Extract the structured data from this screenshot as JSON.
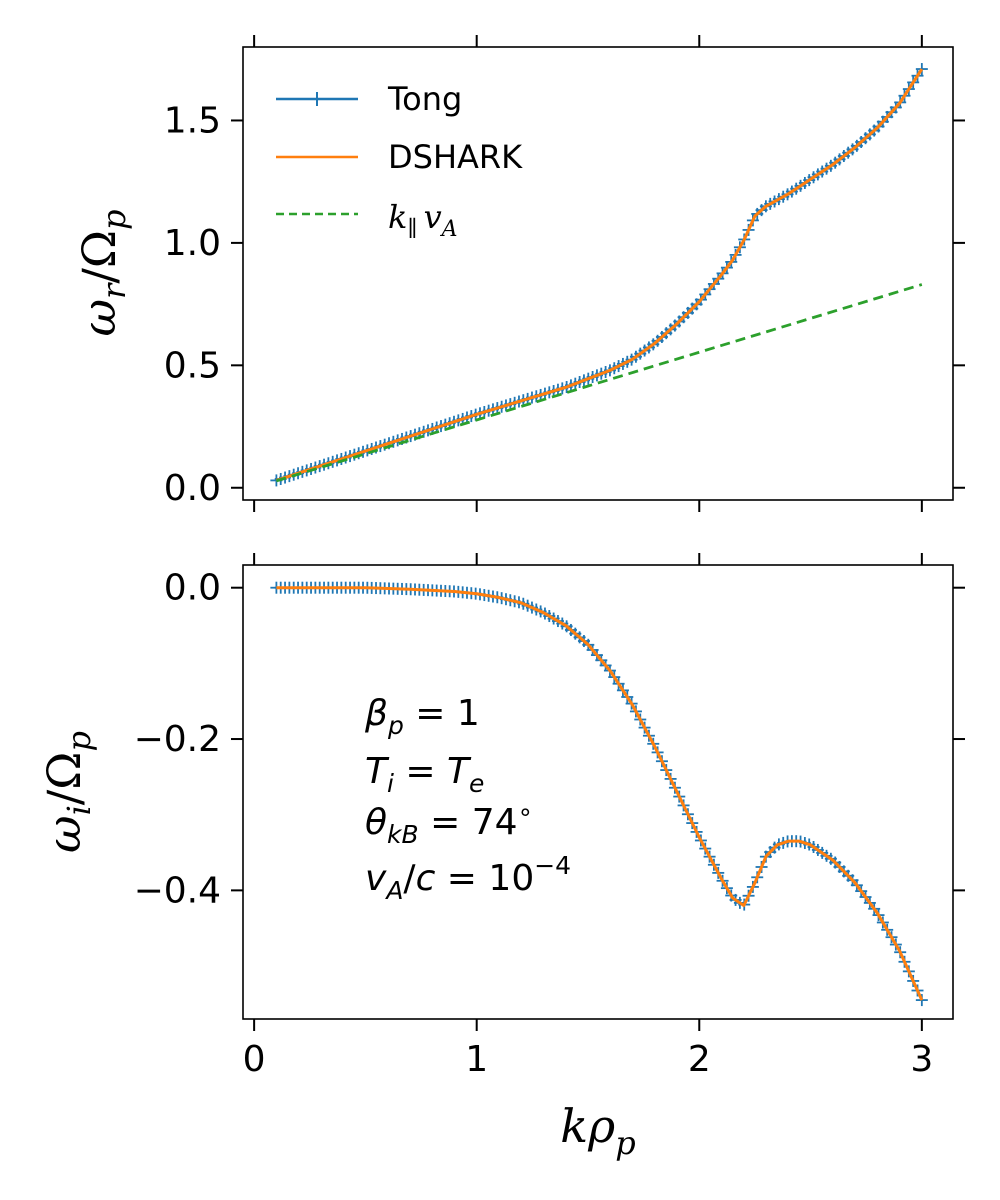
{
  "colors": {
    "tong": "#1f77b4",
    "dshark": "#ff7f0e",
    "alfven": "#2ca02c"
  },
  "xlabel": "kρp",
  "legend": {
    "placement": "upper-left",
    "entries": [
      "Tong",
      "DSHARK",
      "k∥vA"
    ]
  },
  "annotation": [
    "βp = 1",
    "Ti = Te",
    "θkB = 74°",
    "vA/c = 10⁻⁴"
  ],
  "chart_data": [
    {
      "type": "line",
      "panel": "top",
      "ylabel": "ωr/Ωp",
      "xlim": [
        -0.05,
        3.14
      ],
      "ylim": [
        -0.05,
        1.8
      ],
      "xticks": [
        0,
        1,
        2,
        3
      ],
      "yticks": [
        0.0,
        0.5,
        1.0,
        1.5
      ],
      "ytick_labels": [
        "0.0",
        "0.5",
        "1.0",
        "1.5"
      ],
      "grid": false,
      "series": [
        {
          "name": "Tong",
          "style": "plus-markers",
          "x": [
            0.1,
            0.2,
            0.4,
            0.6,
            0.8,
            1.0,
            1.2,
            1.4,
            1.5,
            1.6,
            1.7,
            1.8,
            1.9,
            2.0,
            2.1,
            2.15,
            2.2,
            2.25,
            2.3,
            2.4,
            2.5,
            2.6,
            2.7,
            2.8,
            2.9,
            3.0
          ],
          "y": [
            0.03,
            0.06,
            0.12,
            0.18,
            0.24,
            0.3,
            0.355,
            0.41,
            0.445,
            0.48,
            0.525,
            0.59,
            0.67,
            0.76,
            0.87,
            0.93,
            1.01,
            1.11,
            1.15,
            1.2,
            1.26,
            1.32,
            1.39,
            1.47,
            1.57,
            1.71
          ]
        },
        {
          "name": "DSHARK",
          "style": "solid",
          "x": [
            0.1,
            0.2,
            0.4,
            0.6,
            0.8,
            1.0,
            1.2,
            1.4,
            1.5,
            1.6,
            1.7,
            1.8,
            1.9,
            2.0,
            2.1,
            2.15,
            2.2,
            2.25,
            2.3,
            2.4,
            2.5,
            2.6,
            2.7,
            2.8,
            2.9,
            3.0
          ],
          "y": [
            0.03,
            0.06,
            0.12,
            0.18,
            0.24,
            0.3,
            0.355,
            0.41,
            0.445,
            0.48,
            0.525,
            0.59,
            0.67,
            0.76,
            0.87,
            0.93,
            1.01,
            1.11,
            1.15,
            1.2,
            1.26,
            1.32,
            1.39,
            1.47,
            1.57,
            1.71
          ]
        },
        {
          "name": "k∥vA",
          "style": "dashed",
          "x": [
            0.1,
            3.0
          ],
          "y": [
            0.028,
            0.83
          ]
        }
      ]
    },
    {
      "type": "line",
      "panel": "bottom",
      "ylabel": "ωi/Ωp",
      "xlim": [
        -0.05,
        3.14
      ],
      "ylim": [
        -0.57,
        0.03
      ],
      "xticks": [
        0,
        1,
        2,
        3
      ],
      "yticks": [
        0.0,
        -0.2,
        -0.4
      ],
      "ytick_labels": [
        "0.0",
        "−0.2",
        "−0.4"
      ],
      "grid": false,
      "series": [
        {
          "name": "Tong",
          "style": "plus-markers",
          "x": [
            0.1,
            0.3,
            0.5,
            0.7,
            0.9,
            1.0,
            1.1,
            1.2,
            1.3,
            1.4,
            1.5,
            1.6,
            1.7,
            1.8,
            1.9,
            2.0,
            2.1,
            2.15,
            2.2,
            2.25,
            2.3,
            2.35,
            2.4,
            2.45,
            2.5,
            2.6,
            2.7,
            2.8,
            2.9,
            3.0
          ],
          "y": [
            0.0,
            0.0,
            0.0,
            -0.002,
            -0.005,
            -0.008,
            -0.013,
            -0.02,
            -0.033,
            -0.05,
            -0.075,
            -0.11,
            -0.155,
            -0.21,
            -0.27,
            -0.33,
            -0.385,
            -0.41,
            -0.42,
            -0.39,
            -0.355,
            -0.34,
            -0.335,
            -0.335,
            -0.34,
            -0.36,
            -0.39,
            -0.43,
            -0.48,
            -0.545
          ]
        },
        {
          "name": "DSHARK",
          "style": "solid",
          "x": [
            0.1,
            0.3,
            0.5,
            0.7,
            0.9,
            1.0,
            1.1,
            1.2,
            1.3,
            1.4,
            1.5,
            1.6,
            1.7,
            1.8,
            1.9,
            2.0,
            2.1,
            2.15,
            2.2,
            2.25,
            2.3,
            2.35,
            2.4,
            2.45,
            2.5,
            2.6,
            2.7,
            2.8,
            2.9,
            3.0
          ],
          "y": [
            0.0,
            0.0,
            0.0,
            -0.002,
            -0.005,
            -0.008,
            -0.013,
            -0.02,
            -0.033,
            -0.05,
            -0.075,
            -0.11,
            -0.155,
            -0.21,
            -0.27,
            -0.33,
            -0.385,
            -0.41,
            -0.42,
            -0.39,
            -0.355,
            -0.34,
            -0.335,
            -0.335,
            -0.34,
            -0.36,
            -0.39,
            -0.43,
            -0.48,
            -0.545
          ]
        }
      ]
    }
  ]
}
